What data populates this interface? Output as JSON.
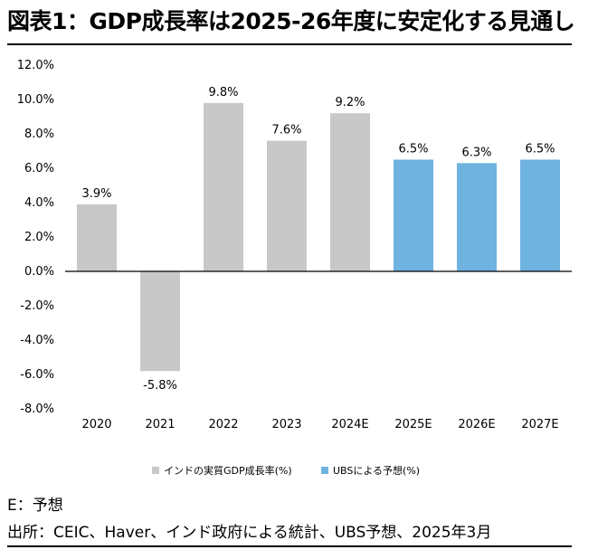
{
  "title": "図表1：GDP成長率は2025-26年度に安定化する見通し",
  "notes": {
    "forecast": "E：予想",
    "source": "出所：CEIC、Haver、インド政府による統計、UBS予想、2025年3月"
  },
  "colors": {
    "actual": "#c8c8c8",
    "forecast": "#6fb3e0",
    "axis": "#000000"
  },
  "chart_data": {
    "type": "bar",
    "categories": [
      "2020",
      "2021",
      "2022",
      "2023",
      "2024E",
      "2025E",
      "2026E",
      "2027E"
    ],
    "series": [
      {
        "name": "インドの実質GDP成長率(%)",
        "values": [
          3.9,
          -5.8,
          9.8,
          7.6,
          9.2,
          null,
          null,
          null
        ]
      },
      {
        "name": "UBSによる予想(%)",
        "values": [
          null,
          null,
          null,
          null,
          null,
          6.5,
          6.3,
          6.5
        ]
      }
    ],
    "data_labels": [
      "3.9%",
      "-5.8%",
      "9.8%",
      "7.6%",
      "9.2%",
      "6.5%",
      "6.3%",
      "6.5%"
    ],
    "yticks": [
      12,
      10,
      8,
      6,
      4,
      2,
      0,
      -2,
      -4,
      -6,
      -8
    ],
    "ytick_labels": [
      "12.0%",
      "10.0%",
      "8.0%",
      "6.0%",
      "4.0%",
      "2.0%",
      "0.0%",
      "-2.0%",
      "-4.0%",
      "-6.0%",
      "-8.0%"
    ],
    "ylim": [
      -8,
      12
    ],
    "grid": false,
    "legend_position": "bottom"
  }
}
